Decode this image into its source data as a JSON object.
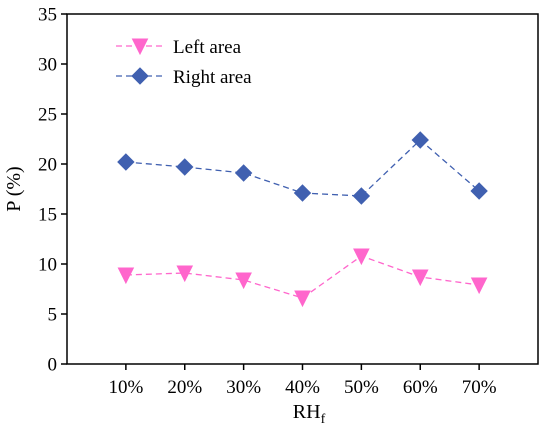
{
  "chart_data": {
    "type": "line",
    "title": "",
    "xlabel": "RH",
    "xlabel_subscript": "f",
    "ylabel": "P (%)",
    "categories": [
      "10%",
      "20%",
      "30%",
      "40%",
      "50%",
      "60%",
      "70%"
    ],
    "ylim": [
      0,
      35
    ],
    "yticks": [
      "0",
      "5",
      "10",
      "15",
      "20",
      "25",
      "30",
      "35"
    ],
    "grid": false,
    "legend_position": "top-left",
    "series": [
      {
        "name": "Left area",
        "values": [
          8.9,
          9.1,
          8.4,
          6.6,
          10.8,
          8.7,
          7.9
        ],
        "color": "#ff66cc",
        "marker": "triangle-down",
        "line_style": "dashed"
      },
      {
        "name": "Right area",
        "values": [
          20.2,
          19.7,
          19.1,
          17.1,
          16.8,
          22.4,
          17.3
        ],
        "color": "#4060b0",
        "marker": "diamond",
        "line_style": "dashed"
      }
    ]
  }
}
